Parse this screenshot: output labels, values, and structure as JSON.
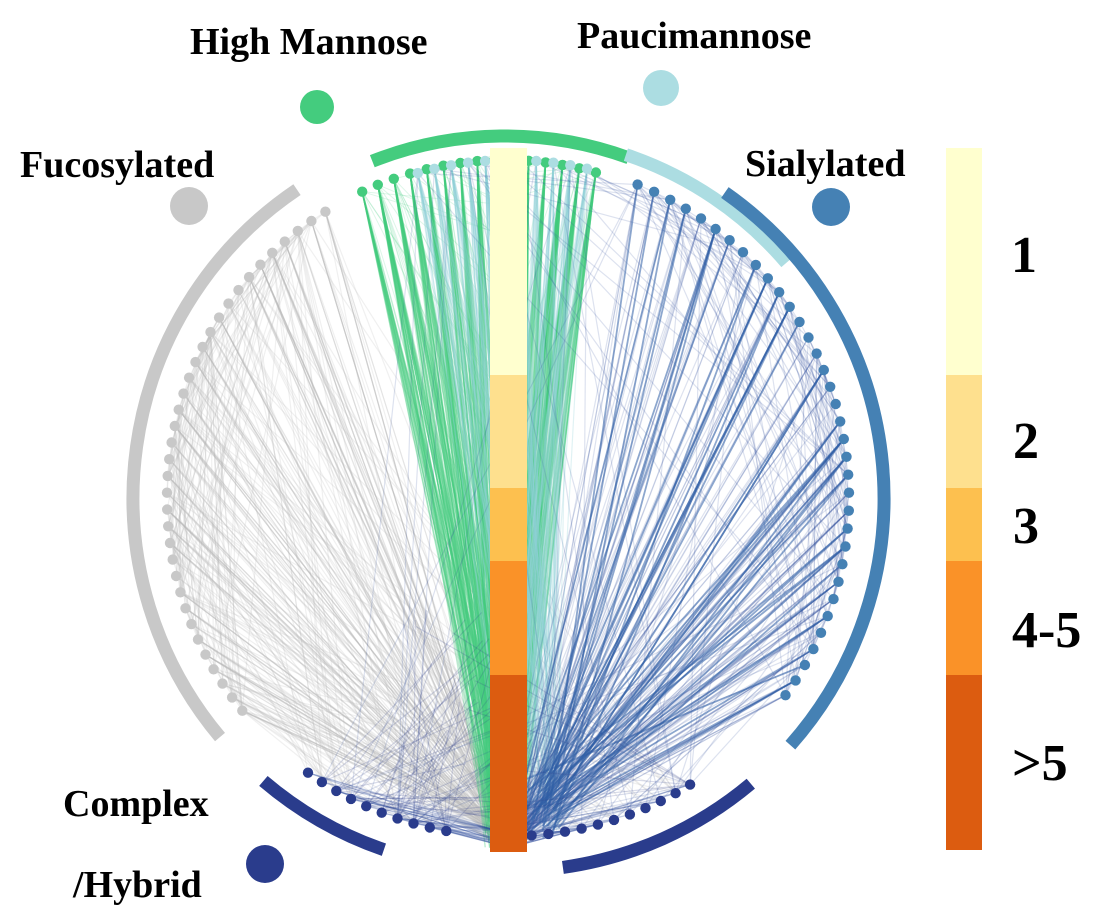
{
  "categories": [
    {
      "key": "high_mannose",
      "label": "High Mannose",
      "color": "#44cc7e"
    },
    {
      "key": "paucimannose",
      "label": "Paucimannose",
      "color": "#acdde2"
    },
    {
      "key": "sialylated",
      "label": "Sialylated",
      "color": "#4581b4"
    },
    {
      "key": "fucosylated",
      "label": "Fucosylated",
      "color": "#c8c8c8"
    },
    {
      "key": "complex_hybrid",
      "label_line1": "Complex",
      "label_line2": "/Hybrid",
      "color": "#2a3c8c"
    }
  ],
  "scale": {
    "bins": [
      {
        "label": "1",
        "color": "#ffffcf"
      },
      {
        "label": "2",
        "color": "#fee08e"
      },
      {
        "label": "3",
        "color": "#fdc04f"
      },
      {
        "label": "4-5",
        "color": "#fa9228"
      },
      {
        "label": ">5",
        "color": "#dc5c10"
      }
    ]
  }
}
